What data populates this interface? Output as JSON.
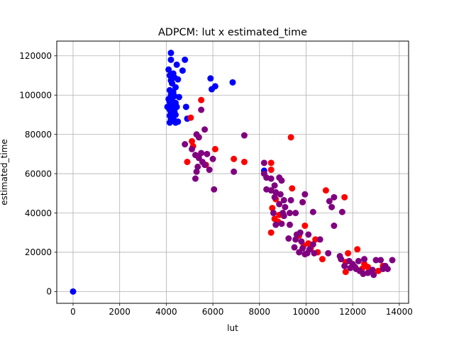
{
  "chart_data": {
    "type": "scatter",
    "title": "ADPCM: lut x estimated_time",
    "xlabel": "lut",
    "ylabel": "estimated_time",
    "xlim": [
      -700,
      14400
    ],
    "ylim": [
      -6000,
      127500
    ],
    "xticks": [
      0,
      2000,
      4000,
      6000,
      8000,
      10000,
      12000,
      14000
    ],
    "yticks": [
      0,
      20000,
      40000,
      60000,
      80000,
      100000,
      120000
    ],
    "xtick_labels": [
      "0",
      "2000",
      "4000",
      "6000",
      "8000",
      "10000",
      "12000",
      "14000"
    ],
    "ytick_labels": [
      "0",
      "20000",
      "40000",
      "60000",
      "80000",
      "100000",
      "120000"
    ],
    "grid": true,
    "colors": {
      "blue": "#0000ff",
      "red": "#ff0000",
      "purple": "#800080"
    },
    "series": [
      {
        "color": "#0000ff",
        "points": [
          [
            0,
            0
          ],
          [
            4200,
            121500
          ],
          [
            4200,
            118000
          ],
          [
            4800,
            118000
          ],
          [
            4450,
            115500
          ],
          [
            4100,
            113000
          ],
          [
            4700,
            112500
          ],
          [
            4300,
            111000
          ],
          [
            4150,
            110000
          ],
          [
            4350,
            109000
          ],
          [
            4500,
            108000
          ],
          [
            5900,
            108500
          ],
          [
            4200,
            107500
          ],
          [
            4250,
            106000
          ],
          [
            6850,
            106500
          ],
          [
            6100,
            104500
          ],
          [
            4400,
            104000
          ],
          [
            5950,
            103000
          ],
          [
            4150,
            102500
          ],
          [
            4300,
            101500
          ],
          [
            4200,
            100000
          ],
          [
            4350,
            99500
          ],
          [
            4550,
            99000
          ],
          [
            4100,
            98000
          ],
          [
            4250,
            97500
          ],
          [
            4150,
            96500
          ],
          [
            4400,
            96000
          ],
          [
            4300,
            95500
          ],
          [
            4200,
            95000
          ],
          [
            4050,
            94000
          ],
          [
            4450,
            94000
          ],
          [
            4850,
            94000
          ],
          [
            4250,
            93500
          ],
          [
            4150,
            92500
          ],
          [
            4350,
            92000
          ],
          [
            4200,
            91000
          ],
          [
            4300,
            90500
          ],
          [
            4400,
            90000
          ],
          [
            4150,
            89500
          ],
          [
            4250,
            88500
          ],
          [
            4900,
            88000
          ],
          [
            4200,
            87500
          ],
          [
            4350,
            87000
          ],
          [
            4500,
            86500
          ],
          [
            4150,
            86000
          ],
          [
            4400,
            86000
          ],
          [
            8200,
            61500
          ]
        ]
      },
      {
        "color": "#ff0000",
        "points": [
          [
            5050,
            88500
          ],
          [
            5500,
            97500
          ],
          [
            5100,
            76500
          ],
          [
            5150,
            74000
          ],
          [
            4900,
            66000
          ],
          [
            5700,
            64500
          ],
          [
            6100,
            72500
          ],
          [
            6900,
            67500
          ],
          [
            7350,
            66000
          ],
          [
            8500,
            65500
          ],
          [
            8500,
            62000
          ],
          [
            9350,
            78500
          ],
          [
            9400,
            52500
          ],
          [
            8700,
            47000
          ],
          [
            10850,
            51500
          ],
          [
            11650,
            48000
          ],
          [
            8550,
            42500
          ],
          [
            8850,
            39000
          ],
          [
            8650,
            37000
          ],
          [
            8800,
            35500
          ],
          [
            9950,
            33500
          ],
          [
            8500,
            30000
          ],
          [
            9700,
            28500
          ],
          [
            10400,
            26500
          ],
          [
            10100,
            24500
          ],
          [
            9900,
            23500
          ],
          [
            10200,
            22000
          ],
          [
            10500,
            20000
          ],
          [
            10700,
            16500
          ],
          [
            12200,
            21500
          ],
          [
            11800,
            19500
          ],
          [
            11700,
            15000
          ],
          [
            11700,
            10000
          ],
          [
            12500,
            14000
          ],
          [
            12650,
            12500
          ],
          [
            12400,
            11500
          ],
          [
            13300,
            13000
          ],
          [
            13100,
            10500
          ]
        ]
      },
      {
        "color": "#800080",
        "points": [
          [
            5500,
            92500
          ],
          [
            5300,
            80000
          ],
          [
            5650,
            82500
          ],
          [
            5400,
            78500
          ],
          [
            4800,
            75000
          ],
          [
            5100,
            72500
          ],
          [
            5250,
            69500
          ],
          [
            5500,
            70500
          ],
          [
            5750,
            70000
          ],
          [
            5400,
            68000
          ],
          [
            5550,
            66000
          ],
          [
            5650,
            64500
          ],
          [
            5350,
            63500
          ],
          [
            5850,
            62000
          ],
          [
            5300,
            61000
          ],
          [
            5250,
            57500
          ],
          [
            6000,
            67500
          ],
          [
            6050,
            52000
          ],
          [
            6900,
            61000
          ],
          [
            7350,
            79500
          ],
          [
            8200,
            65500
          ],
          [
            8200,
            60000
          ],
          [
            8300,
            58000
          ],
          [
            8500,
            57500
          ],
          [
            8850,
            58000
          ],
          [
            8950,
            56500
          ],
          [
            8650,
            54000
          ],
          [
            8300,
            52000
          ],
          [
            8500,
            51500
          ],
          [
            8700,
            50500
          ],
          [
            8900,
            49500
          ],
          [
            9950,
            49500
          ],
          [
            8650,
            48000
          ],
          [
            9050,
            46500
          ],
          [
            9350,
            46500
          ],
          [
            8850,
            44500
          ],
          [
            9100,
            43000
          ],
          [
            8600,
            40000
          ],
          [
            9000,
            40000
          ],
          [
            9300,
            40000
          ],
          [
            9550,
            40000
          ],
          [
            10300,
            40500
          ],
          [
            11000,
            46000
          ],
          [
            11200,
            48000
          ],
          [
            11100,
            43000
          ],
          [
            11550,
            40500
          ],
          [
            9850,
            45500
          ],
          [
            8700,
            34000
          ],
          [
            8950,
            34500
          ],
          [
            9300,
            34000
          ],
          [
            9050,
            38500
          ],
          [
            11200,
            33500
          ],
          [
            9750,
            30000
          ],
          [
            9600,
            29000
          ],
          [
            10100,
            29000
          ],
          [
            9250,
            27000
          ],
          [
            9550,
            26500
          ],
          [
            10600,
            26500
          ],
          [
            9800,
            25500
          ],
          [
            10300,
            24000
          ],
          [
            9500,
            22500
          ],
          [
            9850,
            22000
          ],
          [
            10150,
            21500
          ],
          [
            9700,
            20000
          ],
          [
            10050,
            19500
          ],
          [
            10350,
            19500
          ],
          [
            9950,
            19000
          ],
          [
            10950,
            19500
          ],
          [
            11450,
            18000
          ],
          [
            11500,
            16500
          ],
          [
            11850,
            15500
          ],
          [
            12000,
            14000
          ],
          [
            12250,
            15500
          ],
          [
            12500,
            16500
          ],
          [
            11650,
            13000
          ],
          [
            11900,
            12000
          ],
          [
            12150,
            11500
          ],
          [
            12300,
            10500
          ],
          [
            12450,
            9000
          ],
          [
            12650,
            9500
          ],
          [
            12900,
            8500
          ],
          [
            12850,
            11000
          ],
          [
            13000,
            16000
          ],
          [
            13200,
            16000
          ],
          [
            13400,
            13000
          ],
          [
            13300,
            11500
          ],
          [
            13500,
            11500
          ],
          [
            13700,
            16000
          ],
          [
            12100,
            12500
          ]
        ]
      }
    ]
  }
}
